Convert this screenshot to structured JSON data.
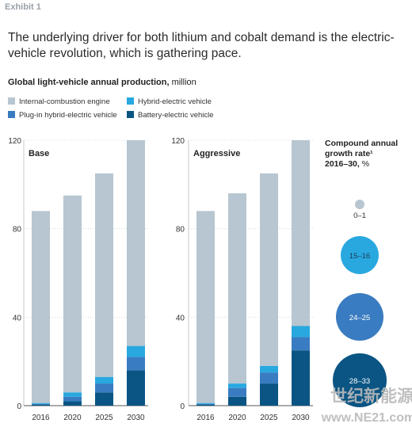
{
  "exhibit_label": "Exhibit 1",
  "headline": "The underlying driver for both lithium and cobalt demand is the electric-vehicle revolution, which is gathering pace.",
  "subtitle": {
    "bold": "Global light-vehicle annual production,",
    "unit": " million"
  },
  "legend": [
    {
      "label": "Internal-combustion engine",
      "color": "#b7c6d1"
    },
    {
      "label": "Hybrid-electric vehicle",
      "color": "#29a8e0"
    },
    {
      "label": "Plug-in hybrid-electric vehicle",
      "color": "#3a7cc1"
    },
    {
      "label": "Battery-electric vehicle",
      "color": "#0a5584"
    }
  ],
  "bubble_legend": {
    "title": "Compound annual growth rate¹",
    "period": "2016–30,",
    "unit": " %",
    "items": [
      {
        "label": "0–1",
        "color": "#b7c6d1",
        "size": 1
      },
      {
        "label": "15–16",
        "color": "#29a8e0",
        "size": 3
      },
      {
        "label": "24–25",
        "color": "#3a7cc1",
        "size": 4
      },
      {
        "label": "28–33",
        "color": "#0a5584",
        "size": 5
      }
    ]
  },
  "chart_data": [
    {
      "type": "bar",
      "stacked": true,
      "title": "Base",
      "categories": [
        "2016",
        "2020",
        "2025",
        "2030"
      ],
      "yticks": [
        0,
        40,
        80,
        120
      ],
      "ylim": [
        0,
        120
      ],
      "series": [
        {
          "name": "Battery-electric vehicle",
          "values": [
            0.5,
            2,
            6,
            16
          ]
        },
        {
          "name": "Plug-in hybrid-electric vehicle",
          "values": [
            0.3,
            2,
            4,
            6
          ]
        },
        {
          "name": "Hybrid-electric vehicle",
          "values": [
            0.4,
            2,
            3,
            5
          ]
        },
        {
          "name": "Internal-combustion engine",
          "values": [
            86.8,
            89,
            92,
            93
          ]
        }
      ]
    },
    {
      "type": "bar",
      "stacked": true,
      "title": "Aggressive",
      "categories": [
        "2016",
        "2020",
        "2025",
        "2030"
      ],
      "yticks": [
        0,
        40,
        80,
        120
      ],
      "ylim": [
        0,
        120
      ],
      "series": [
        {
          "name": "Battery-electric vehicle",
          "values": [
            0.5,
            4,
            10,
            25
          ]
        },
        {
          "name": "Plug-in hybrid-electric vehicle",
          "values": [
            0.3,
            4,
            5,
            6
          ]
        },
        {
          "name": "Hybrid-electric vehicle",
          "values": [
            0.4,
            2,
            3,
            5
          ]
        },
        {
          "name": "Internal-combustion engine",
          "values": [
            86.8,
            86,
            87,
            84
          ]
        }
      ]
    }
  ],
  "watermark": {
    "cn": "世纪新能源网",
    "url": "www.NE21.com"
  }
}
